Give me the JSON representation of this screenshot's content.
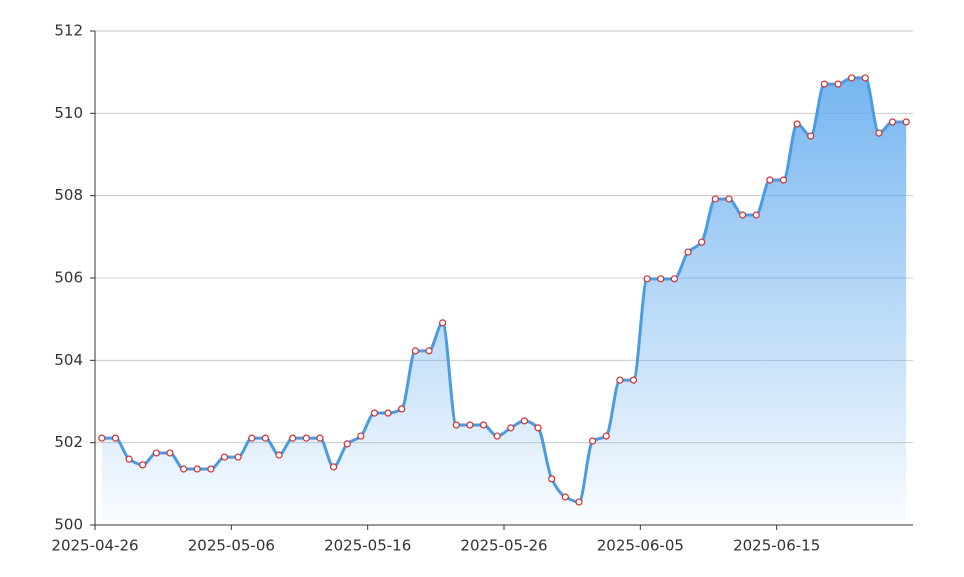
{
  "chart_data": {
    "type": "area",
    "categories": [
      "2025-04-26",
      null,
      null,
      null,
      null,
      null,
      null,
      null,
      null,
      null,
      "2025-05-06",
      null,
      null,
      null,
      null,
      null,
      null,
      null,
      null,
      null,
      "2025-05-16",
      null,
      null,
      null,
      null,
      null,
      null,
      null,
      null,
      null,
      "2025-05-26",
      null,
      null,
      null,
      null,
      null,
      null,
      null,
      null,
      null,
      "2025-06-05",
      null,
      null,
      null,
      null,
      null,
      null,
      null,
      null,
      null,
      "2025-06-15",
      null,
      null,
      null,
      null,
      null,
      null,
      null,
      null,
      null
    ],
    "values": [
      502.11,
      502.11,
      501.6,
      501.46,
      501.75,
      501.75,
      501.36,
      501.36,
      501.36,
      501.65,
      501.65,
      502.11,
      502.11,
      501.7,
      502.11,
      502.11,
      502.11,
      501.41,
      501.97,
      502.16,
      502.72,
      502.72,
      502.82,
      504.23,
      504.23,
      504.91,
      502.43,
      502.43,
      502.43,
      502.16,
      502.36,
      502.53,
      502.36,
      501.12,
      500.68,
      500.56,
      502.04,
      502.16,
      503.52,
      503.52,
      505.98,
      505.98,
      505.98,
      506.63,
      506.87,
      507.92,
      507.92,
      507.53,
      507.53,
      508.38,
      508.38,
      509.74,
      509.45,
      510.71,
      510.71,
      510.86,
      510.86,
      509.52,
      509.79,
      509.79
    ],
    "color": "#4a9be0",
    "marker_color": "#d03030",
    "ylim": [
      500,
      512
    ],
    "yticks": [
      500,
      502,
      504,
      506,
      508,
      510,
      512
    ],
    "grid": true
  }
}
